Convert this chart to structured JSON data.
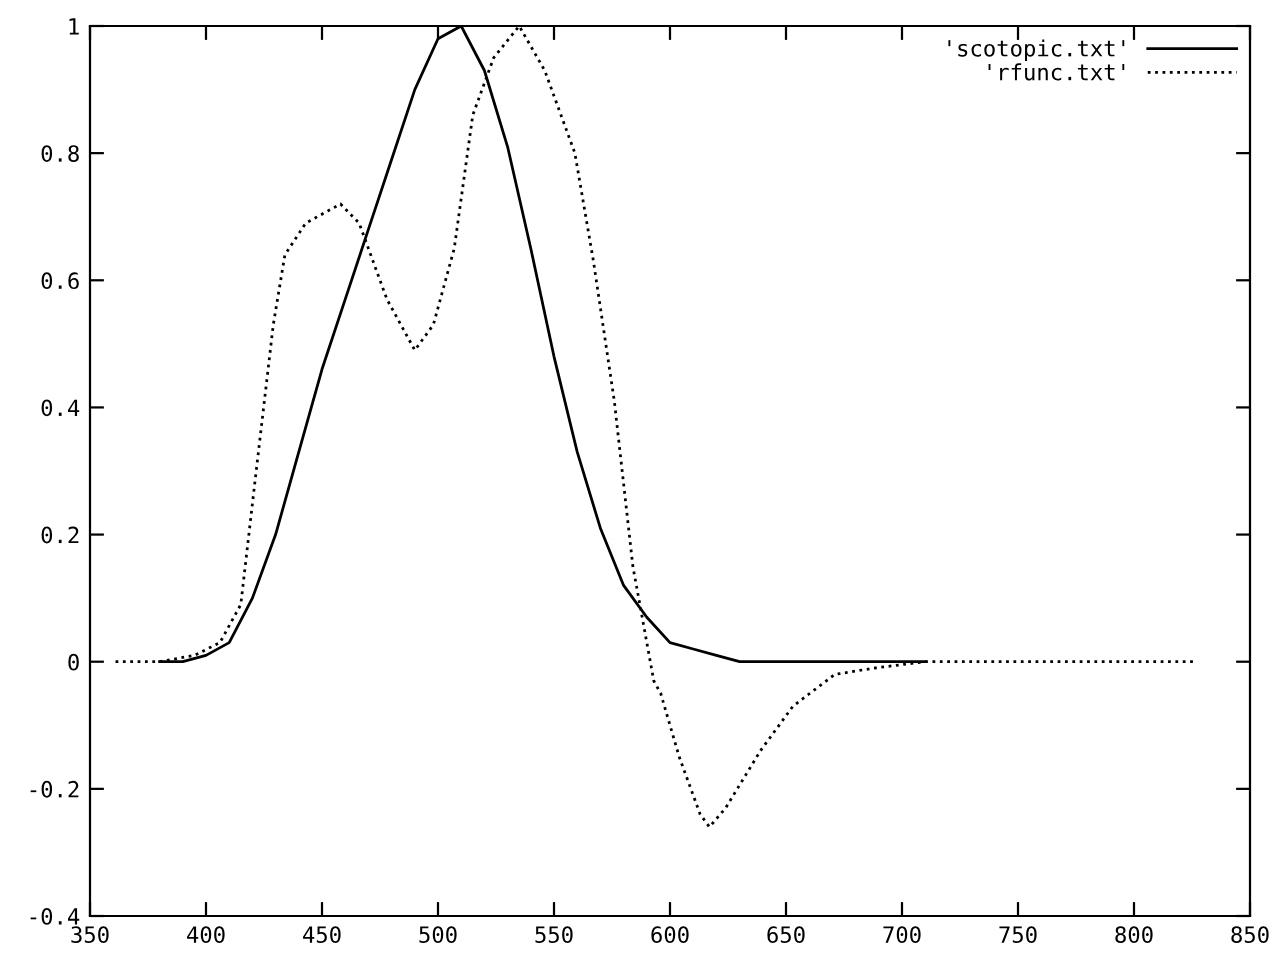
{
  "chart_data": {
    "type": "line",
    "xlim": [
      350,
      850
    ],
    "ylim": [
      -0.4,
      1
    ],
    "xticks": [
      350,
      400,
      450,
      500,
      550,
      600,
      650,
      700,
      750,
      800,
      850
    ],
    "yticks": [
      -0.4,
      -0.2,
      0,
      0.2,
      0.4,
      0.6,
      0.8,
      1
    ],
    "grid": false,
    "legend": "top right",
    "marker": "none",
    "series": [
      {
        "name": "'scotopic.txt'",
        "color": "#000000",
        "line_style": "solid",
        "x": [
          380,
          390,
          400,
          410,
          420,
          430,
          440,
          450,
          460,
          470,
          480,
          490,
          500,
          510,
          520,
          530,
          540,
          550,
          560,
          570,
          580,
          590,
          600,
          610,
          620,
          630,
          640,
          650,
          660,
          670,
          680,
          690,
          700,
          710
        ],
        "values": [
          0.0,
          0.0,
          0.01,
          0.03,
          0.1,
          0.2,
          0.33,
          0.46,
          0.57,
          0.68,
          0.79,
          0.9,
          0.98,
          1.0,
          0.93,
          0.81,
          0.65,
          0.48,
          0.33,
          0.21,
          0.12,
          0.07,
          0.03,
          0.02,
          0.01,
          0.0,
          0.0,
          0.0,
          0.0,
          0.0,
          0.0,
          0.0,
          0.0,
          0.0
        ]
      },
      {
        "name": "'rfunc.txt'",
        "color": "#000000",
        "line_style": "dotted",
        "x": [
          361,
          380,
          395,
          406,
          415,
          421,
          429,
          434,
          443,
          458,
          466,
          478,
          490,
          498,
          507,
          515,
          524,
          535,
          546,
          559,
          567,
          576,
          584,
          593,
          596,
          604,
          613,
          617,
          624,
          639,
          653,
          671,
          688,
          710,
          720,
          760,
          800,
          826
        ],
        "values": [
          0.0,
          0.0,
          0.01,
          0.03,
          0.09,
          0.28,
          0.53,
          0.64,
          0.69,
          0.72,
          0.69,
          0.57,
          0.49,
          0.53,
          0.65,
          0.86,
          0.95,
          1.0,
          0.93,
          0.8,
          0.63,
          0.41,
          0.15,
          -0.03,
          -0.05,
          -0.15,
          -0.24,
          -0.26,
          -0.23,
          -0.14,
          -0.07,
          -0.02,
          -0.01,
          0.0,
          0.0,
          0.0,
          0.0,
          0.0
        ]
      }
    ]
  }
}
